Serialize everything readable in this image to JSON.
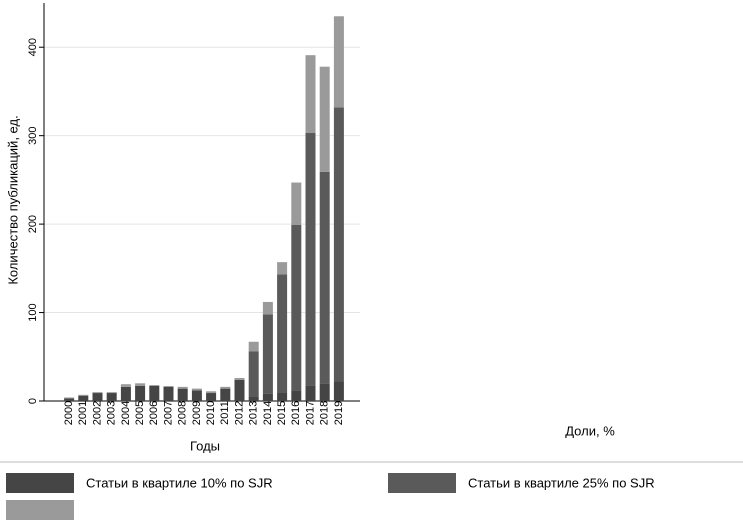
{
  "chart_data": {
    "type": "stacked-bar",
    "x_label": "Годы",
    "y_label": "Количество публикаций, ед.",
    "annotation": "Доли, %",
    "categories": [
      "2000",
      "2001",
      "2002",
      "2003",
      "2004",
      "2005",
      "2006",
      "2007",
      "2008",
      "2009",
      "2010",
      "2011",
      "2012",
      "2013",
      "2014",
      "2015",
      "2016",
      "2017",
      "2018",
      "2019"
    ],
    "series": [
      {
        "name": "Статьи в квартиле 10% по SJR",
        "color": "#454545",
        "values": [
          3,
          6,
          9,
          9,
          16,
          17,
          17,
          16,
          14,
          12,
          9,
          14,
          24,
          5,
          8,
          10,
          12,
          17,
          20,
          22
        ]
      },
      {
        "name": "Статьи в квартиле 25% по SJR",
        "color": "#5a5a5a",
        "values": [
          0,
          0,
          0,
          0,
          0,
          0,
          0,
          0,
          0,
          0,
          0,
          0,
          0,
          51,
          90,
          133,
          187,
          286,
          239,
          310
        ]
      },
      {
        "name": null,
        "color": "#9a9a9a",
        "values": [
          1,
          1,
          1,
          1,
          3,
          3,
          1,
          1,
          2,
          2,
          2,
          2,
          2,
          11,
          14,
          14,
          48,
          88,
          119,
          103
        ]
      }
    ],
    "ylim": [
      0,
      450
    ],
    "yticks": [
      0,
      100,
      200,
      300,
      400
    ],
    "grid": true
  }
}
